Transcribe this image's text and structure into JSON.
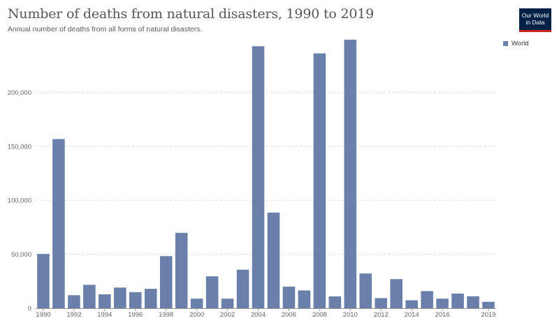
{
  "header": {
    "title": "Number of deaths from natural disasters, 1990 to 2019",
    "subtitle": "Annual number of deaths from all forms of natural disasters.",
    "logo_line1": "Our World",
    "logo_line2": "in Data"
  },
  "colors": {
    "bar": "#6a80aa",
    "grid": "#dddddd",
    "axis": "#999999",
    "logo_bg": "#002147",
    "logo_accent": "#ce261e"
  },
  "chart_data": {
    "type": "bar",
    "title": "Number of deaths from natural disasters, 1990 to 2019",
    "subtitle": "Annual number of deaths from all forms of natural disasters.",
    "xlabel": "",
    "ylabel": "",
    "grid": true,
    "legend_position": "top-right",
    "categories": [
      1990,
      1991,
      1992,
      1993,
      1994,
      1995,
      1996,
      1997,
      1998,
      1999,
      2000,
      2001,
      2002,
      2003,
      2004,
      2005,
      2006,
      2007,
      2008,
      2009,
      2010,
      2011,
      2012,
      2013,
      2014,
      2015,
      2016,
      2017,
      2018,
      2019
    ],
    "x_tick_labels": [
      "1990",
      "1992",
      "1994",
      "1996",
      "1998",
      "2000",
      "2002",
      "2004",
      "2006",
      "2008",
      "2010",
      "2012",
      "2014",
      "2016",
      "2019"
    ],
    "y_ticks": [
      0,
      50000,
      100000,
      150000,
      200000
    ],
    "y_tick_labels": [
      "0",
      "50,000",
      "100,000",
      "150,000",
      "200,000"
    ],
    "ylim": [
      0,
      250000
    ],
    "series": [
      {
        "name": "World",
        "values": [
          50300,
          156700,
          12100,
          21700,
          12900,
          19200,
          14900,
          18000,
          48300,
          69900,
          8900,
          29600,
          8900,
          35700,
          242700,
          88600,
          20000,
          16500,
          236100,
          11000,
          248800,
          32200,
          9400,
          27000,
          7400,
          15900,
          8900,
          13600,
          11100,
          6000
        ]
      }
    ]
  }
}
